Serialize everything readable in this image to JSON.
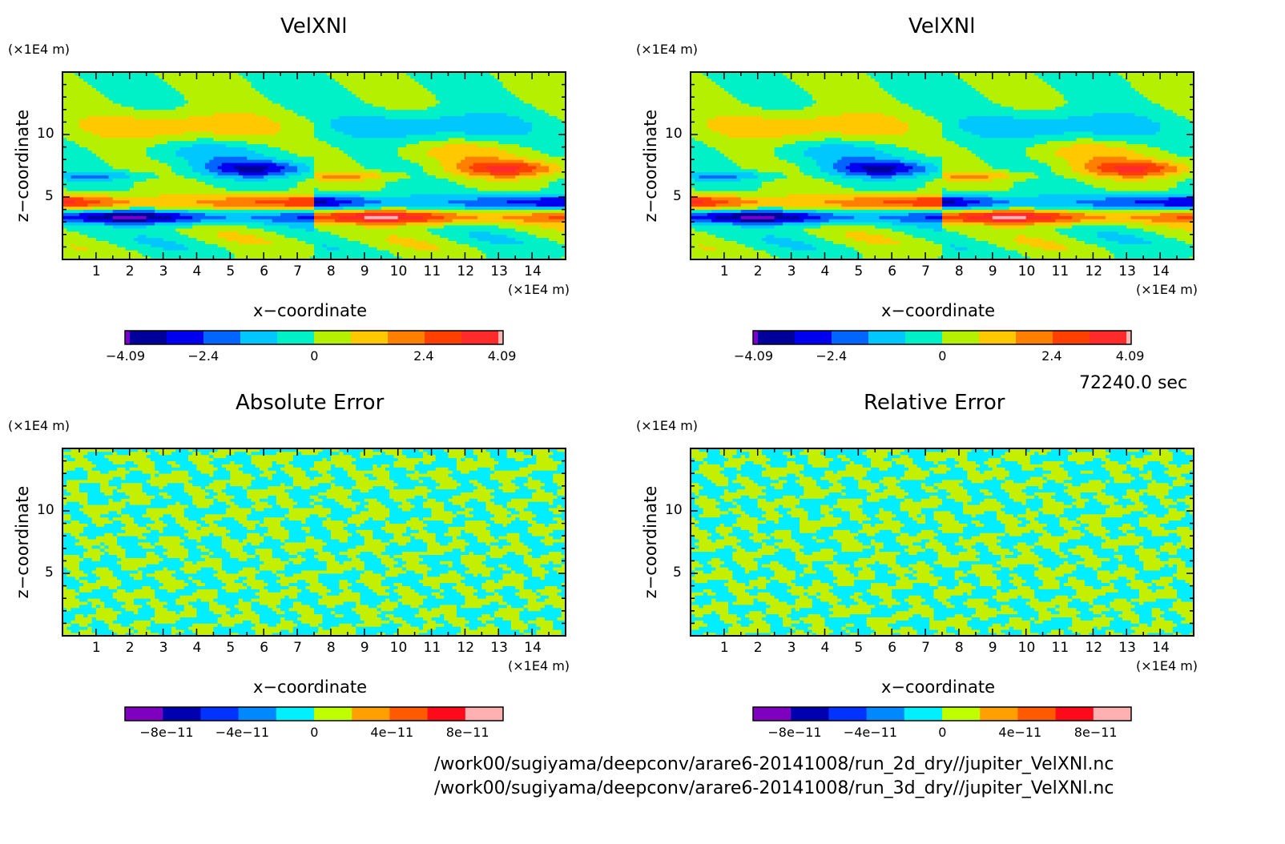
{
  "time_label": "72240.0 sec",
  "file_paths": [
    "/work00/sugiyama/deepconv/arare6-20141008/run_2d_dry//jupiter_VelXNl.nc",
    "/work00/sugiyama/deepconv/arare6-20141008/run_3d_dry//jupiter_VelXNl.nc"
  ],
  "colors": {
    "colorbar_velocity": [
      "#7a00d0",
      "#00009a",
      "#0000f0",
      "#0066ff",
      "#00c8ff",
      "#00f0c8",
      "#b4f000",
      "#ffc800",
      "#ff8000",
      "#ff4000",
      "#ff2a2a",
      "#ffb4b4"
    ],
    "colorbar_error": [
      "#8000c0",
      "#0000b0",
      "#0033ff",
      "#0088ff",
      "#00f0ff",
      "#c0ff00",
      "#ffa000",
      "#ff5a00",
      "#ff0a1a",
      "#ffb0b0"
    ],
    "error_positive": "#c4f000",
    "error_negative": "#00eeff"
  },
  "chart_data": [
    {
      "type": "heatmap",
      "title": "VelXNl",
      "xlabel": "x−coordinate",
      "ylabel": "z−coordinate",
      "x_unit": "(×1E4 m)",
      "y_unit": "(×1E4 m)",
      "xlim": [
        0,
        15
      ],
      "ylim": [
        0,
        15
      ],
      "x_ticks": [
        "1",
        "2",
        "3",
        "4",
        "5",
        "6",
        "7",
        "8",
        "9",
        "10",
        "11",
        "12",
        "13",
        "14"
      ],
      "y_ticks": [
        "5",
        "10"
      ],
      "colorbar_labels": [
        "−4.09",
        "−2.4",
        "0",
        "2.4",
        "4.09"
      ],
      "colorbar_values": [
        -4.09,
        -2.4,
        0,
        2.4,
        4.09
      ],
      "field": "velocity"
    },
    {
      "type": "heatmap",
      "title": "VelXNl",
      "xlabel": "x−coordinate",
      "ylabel": "z−coordinate",
      "x_unit": "(×1E4 m)",
      "y_unit": "(×1E4 m)",
      "xlim": [
        0,
        15
      ],
      "ylim": [
        0,
        15
      ],
      "x_ticks": [
        "1",
        "2",
        "3",
        "4",
        "5",
        "6",
        "7",
        "8",
        "9",
        "10",
        "11",
        "12",
        "13",
        "14"
      ],
      "y_ticks": [
        "5",
        "10"
      ],
      "colorbar_labels": [
        "−4.09",
        "−2.4",
        "0",
        "2.4",
        "4.09"
      ],
      "colorbar_values": [
        -4.09,
        -2.4,
        0,
        2.4,
        4.09
      ],
      "field": "velocity"
    },
    {
      "type": "heatmap",
      "title": "Absolute Error",
      "xlabel": "x−coordinate",
      "ylabel": "z−coordinate",
      "x_unit": "(×1E4 m)",
      "y_unit": "(×1E4 m)",
      "xlim": [
        0,
        15
      ],
      "ylim": [
        0,
        15
      ],
      "x_ticks": [
        "1",
        "2",
        "3",
        "4",
        "5",
        "6",
        "7",
        "8",
        "9",
        "10",
        "11",
        "12",
        "13",
        "14"
      ],
      "y_ticks": [
        "5",
        "10"
      ],
      "colorbar_labels": [
        "−8e−11",
        "−4e−11",
        "0",
        "4e−11",
        "8e−11"
      ],
      "colorbar_values": [
        -8e-11,
        -4e-11,
        0,
        4e-11,
        8e-11
      ],
      "field": "absolute_error"
    },
    {
      "type": "heatmap",
      "title": "Relative Error",
      "xlabel": "x−coordinate",
      "ylabel": "z−coordinate",
      "x_unit": "(×1E4 m)",
      "y_unit": "(×1E4 m)",
      "xlim": [
        0,
        15
      ],
      "ylim": [
        0,
        15
      ],
      "x_ticks": [
        "1",
        "2",
        "3",
        "4",
        "5",
        "6",
        "7",
        "8",
        "9",
        "10",
        "11",
        "12",
        "13",
        "14"
      ],
      "y_ticks": [
        "5",
        "10"
      ],
      "colorbar_labels": [
        "−8e−11",
        "−4e−11",
        "0",
        "4e−11",
        "8e−11"
      ],
      "colorbar_values": [
        -8e-11,
        -4e-11,
        0,
        4e-11,
        8e-11
      ],
      "field": "relative_error"
    }
  ]
}
